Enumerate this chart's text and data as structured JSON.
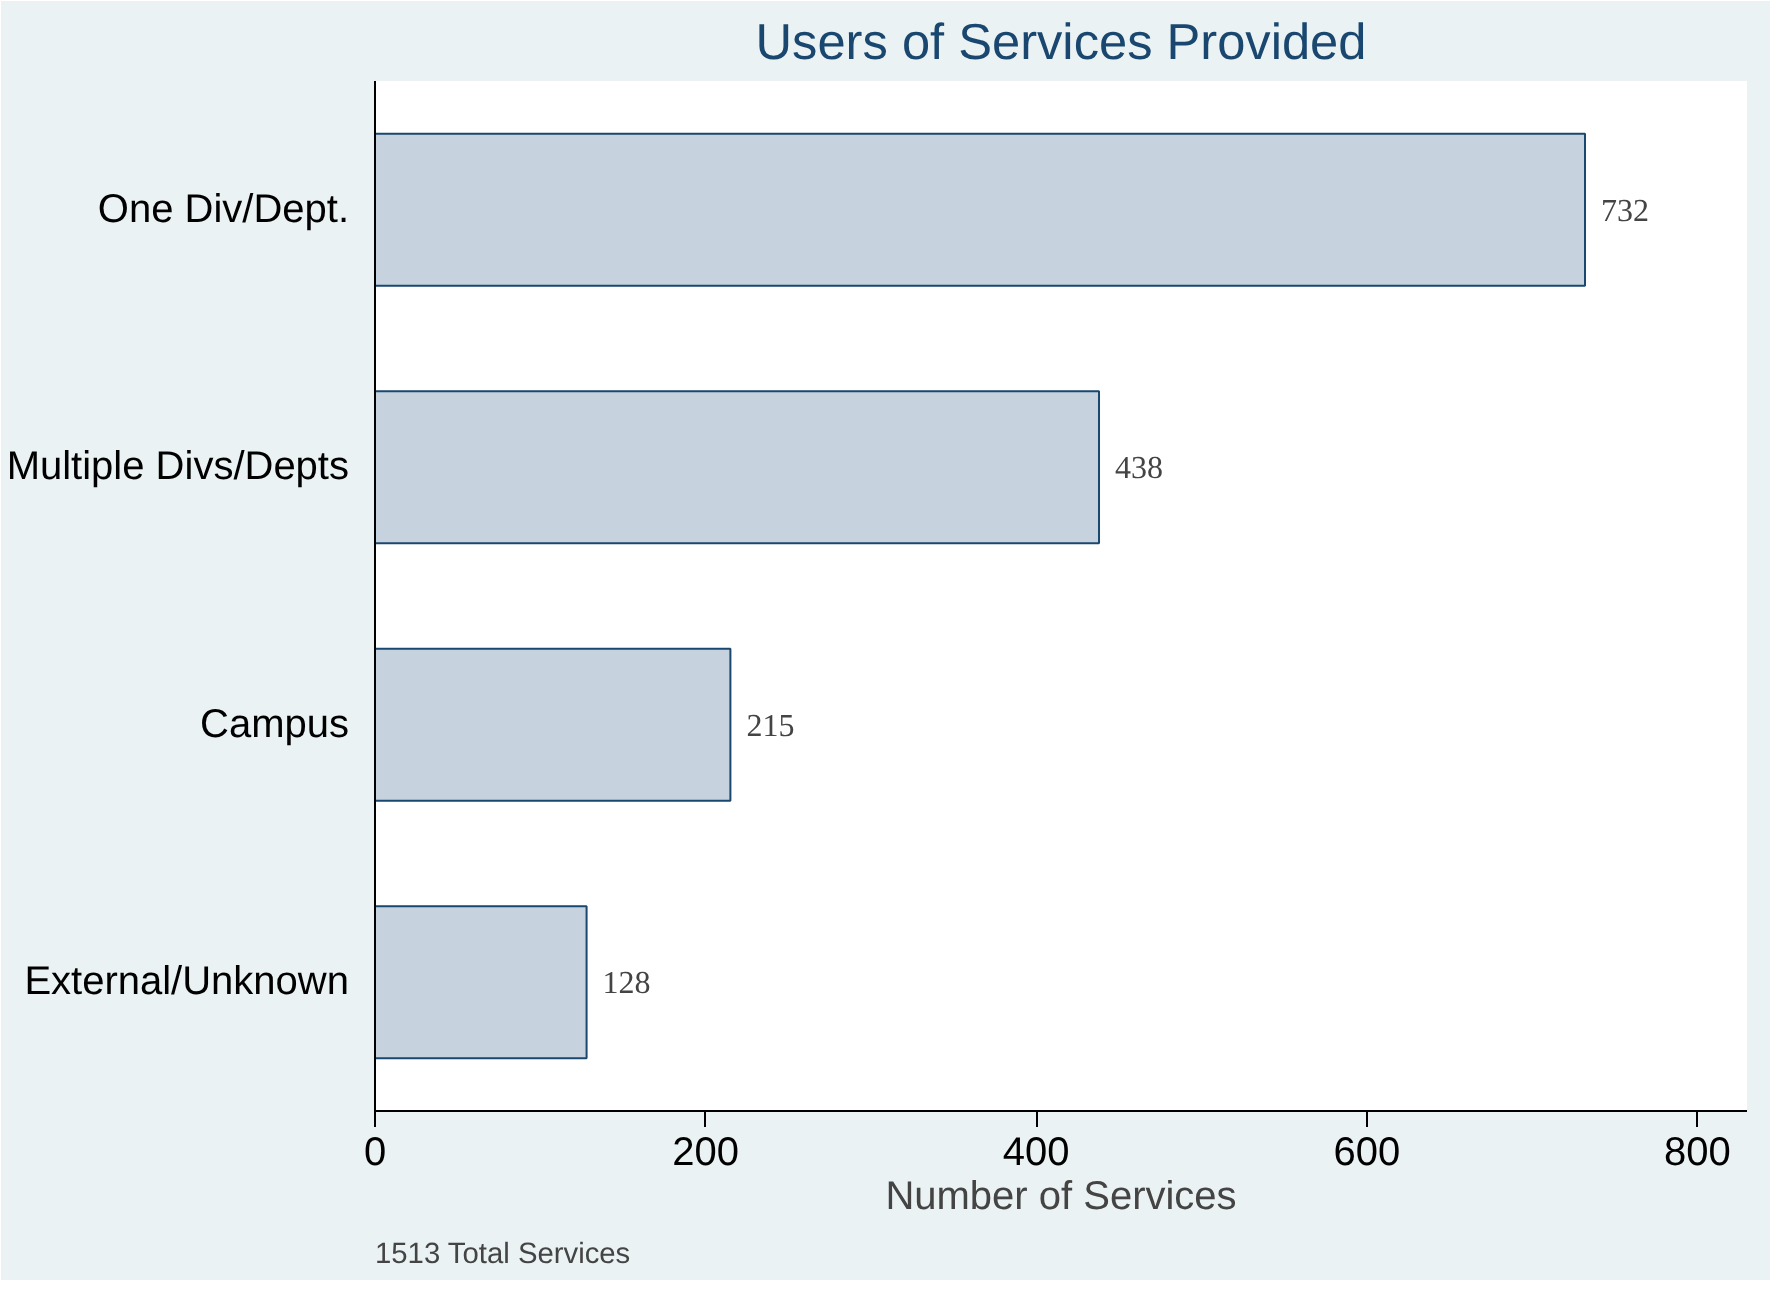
{
  "chart_data": {
    "type": "bar",
    "orientation": "horizontal",
    "title": "Users of Services Provided",
    "xlabel": "Number of Services",
    "categories": [
      "One Div/Dept.",
      "Multiple Divs/Depts",
      "Campus",
      "External/Unknown"
    ],
    "values": [
      732,
      438,
      215,
      128
    ],
    "color": "#c6d3df",
    "data_labels": true,
    "xlim": [
      0,
      830
    ],
    "xticks": [
      0,
      200,
      400,
      600,
      800
    ],
    "grid": false,
    "annotations": [
      "1513 Total Services"
    ]
  }
}
